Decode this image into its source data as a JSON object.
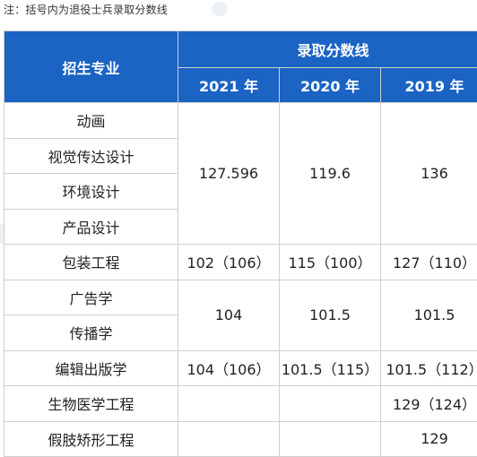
{
  "note": "注：括号内为退役士兵录取分数线",
  "table": {
    "col_major": "招生专业",
    "col_score": "录取分数线",
    "years": [
      "2021 年",
      "2020 年",
      "2019 年"
    ],
    "groups": [
      {
        "majors": [
          "动画",
          "视觉传达设计",
          "环境设计",
          "产品设计"
        ],
        "scores": [
          "127.596",
          "119.6",
          "136"
        ]
      },
      {
        "majors": [
          "包装工程"
        ],
        "scores": [
          "102（106）",
          "115（100）",
          "127（110）"
        ]
      },
      {
        "majors": [
          "广告学",
          "传播学"
        ],
        "scores": [
          "104",
          "101.5",
          "101.5"
        ]
      },
      {
        "majors": [
          "编辑出版学"
        ],
        "scores": [
          "104（106）",
          "101.5（115）",
          "101.5（112）"
        ]
      },
      {
        "majors": [
          "生物医学工程"
        ],
        "scores": [
          "",
          "",
          "129（124）"
        ]
      },
      {
        "majors": [
          "假肢矫形工程"
        ],
        "scores": [
          "",
          "",
          "129"
        ]
      }
    ]
  },
  "colors": {
    "header_bg": "#1b64c4",
    "header_text": "#ffffff",
    "grid": "#cfcfcf"
  }
}
